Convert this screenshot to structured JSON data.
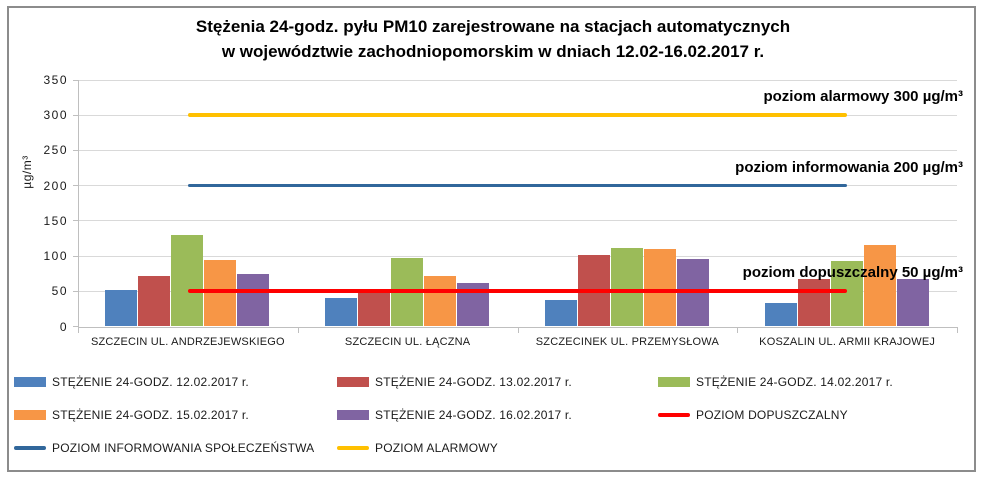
{
  "title": {
    "line1": "Stężenia 24-godz. pyłu PM10 zarejestrowane na stacjach automatycznych",
    "line2": "w województwie zachodniopomorskim w dniach 12.02-16.02.2017 r."
  },
  "chart_data": {
    "type": "bar",
    "title": "Stężenia 24-godz. pyłu PM10 zarejestrowane na stacjach automatycznych w województwie zachodniopomorskim w dniach 12.02-16.02.2017 r.",
    "ylabel": "µg/m³",
    "ylim": [
      0,
      350
    ],
    "yticks": [
      0,
      50,
      100,
      150,
      200,
      250,
      300,
      350
    ],
    "grid": true,
    "legend_position": "bottom",
    "categories": [
      "SZCZECIN UL. ANDRZEJEWSKIEGO",
      "SZCZECIN UL. ŁĄCZNA",
      "SZCZECINEK UL. PRZEMYSŁOWA",
      "KOSZALIN UL. ARMII KRAJOWEJ"
    ],
    "series": [
      {
        "name": "STĘŻENIE 24-GODZ. 12.02.2017 r.",
        "color": "#4F81BD",
        "values": [
          52,
          40,
          38,
          33
        ]
      },
      {
        "name": "STĘŻENIE 24-GODZ. 13.02.2017 r.",
        "color": "#C0504D",
        "values": [
          71,
          53,
          102,
          68
        ]
      },
      {
        "name": "STĘŻENIE 24-GODZ. 14.02.2017 r.",
        "color": "#9BBB59",
        "values": [
          130,
          97,
          111,
          93
        ]
      },
      {
        "name": "STĘŻENIE 24-GODZ. 15.02.2017 r.",
        "color": "#F79646",
        "values": [
          94,
          71,
          110,
          116
        ]
      },
      {
        "name": "STĘŻENIE 24-GODZ. 16.02.2017 r.",
        "color": "#8064A2",
        "values": [
          75,
          62,
          96,
          67
        ]
      }
    ],
    "threshold_lines": [
      {
        "name": "POZIOM DOPUSZCZALNY",
        "value": 50,
        "color": "#FF0000",
        "thickness": 4,
        "annotation": "poziom dopuszczalny 50 µg/m³"
      },
      {
        "name": "POZIOM INFORMOWANIA SPOŁECZEŃSTWA",
        "value": 200,
        "color": "#31679B",
        "thickness": 3,
        "annotation": "poziom informowania 200 µg/m³"
      },
      {
        "name": "POZIOM ALARMOWY",
        "value": 300,
        "color": "#FFC000",
        "thickness": 4,
        "annotation": "poziom alarmowy 300 µg/m³"
      }
    ]
  },
  "legend": {
    "items": [
      {
        "label": "STĘŻENIE 24-GODZ. 12.02.2017 r.",
        "color": "#4F81BD",
        "shape": "bar"
      },
      {
        "label": "STĘŻENIE 24-GODZ. 13.02.2017 r.",
        "color": "#C0504D",
        "shape": "bar"
      },
      {
        "label": "STĘŻENIE 24-GODZ. 14.02.2017 r.",
        "color": "#9BBB59",
        "shape": "bar"
      },
      {
        "label": "STĘŻENIE 24-GODZ. 15.02.2017 r.",
        "color": "#F79646",
        "shape": "bar"
      },
      {
        "label": "STĘŻENIE 24-GODZ. 16.02.2017 r.",
        "color": "#8064A2",
        "shape": "bar"
      },
      {
        "label": "POZIOM DOPUSZCZALNY",
        "color": "#FF0000",
        "shape": "line"
      },
      {
        "label": "POZIOM INFORMOWANIA SPOŁECZEŃSTWA",
        "color": "#31679B",
        "shape": "line"
      },
      {
        "label": "POZIOM ALARMOWY",
        "color": "#FFC000",
        "shape": "line"
      }
    ]
  },
  "colors": {
    "gridline": "#D9D9D9",
    "axis": "#BFBFBF",
    "frame_border": "#8C8C8C",
    "text": "#000000"
  }
}
